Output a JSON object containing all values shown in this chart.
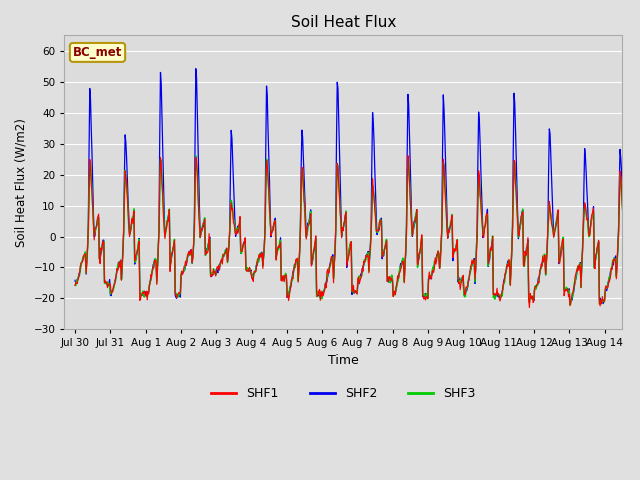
{
  "title": "Soil Heat Flux",
  "ylabel": "Soil Heat Flux (W/m2)",
  "xlabel": "Time",
  "ylim": [
    -30,
    65
  ],
  "yticks": [
    -30,
    -20,
    -10,
    0,
    10,
    20,
    30,
    40,
    50,
    60
  ],
  "fig_bg": "#e0e0e0",
  "plot_bg": "#dcdcdc",
  "grid_color": "#ffffff",
  "annotation_text": "BC_met",
  "annotation_color": "#8b0000",
  "annotation_bg": "#ffffcc",
  "annotation_border": "#b8960c",
  "shf1_color": "#ff0000",
  "shf2_color": "#0000ee",
  "shf3_color": "#00cc00",
  "legend_labels": [
    "SHF1",
    "SHF2",
    "SHF3"
  ],
  "shf2_day_peaks": [
    47,
    33,
    53,
    54,
    34,
    48,
    35,
    51,
    40,
    46,
    45,
    40,
    46,
    35,
    28,
    28
  ],
  "shf13_day_peaks": [
    25,
    21,
    25,
    26,
    11,
    25,
    23,
    24,
    17,
    25,
    24,
    20,
    25,
    10,
    10,
    20
  ],
  "day_troughs": [
    -15,
    -19,
    -19,
    -12,
    -11,
    -13,
    -19,
    -18,
    -14,
    -19,
    -14,
    -19,
    -20,
    -17,
    -21,
    -17
  ],
  "x_tick_labels": [
    "Jul 30",
    "Jul 31",
    "Aug 1",
    "Aug 2",
    "Aug 3",
    "Aug 4",
    "Aug 5",
    "Aug 6",
    "Aug 7",
    "Aug 8",
    "Aug 9",
    "Aug 10",
    "Aug 11",
    "Aug 12",
    "Aug 13",
    "Aug 14"
  ]
}
